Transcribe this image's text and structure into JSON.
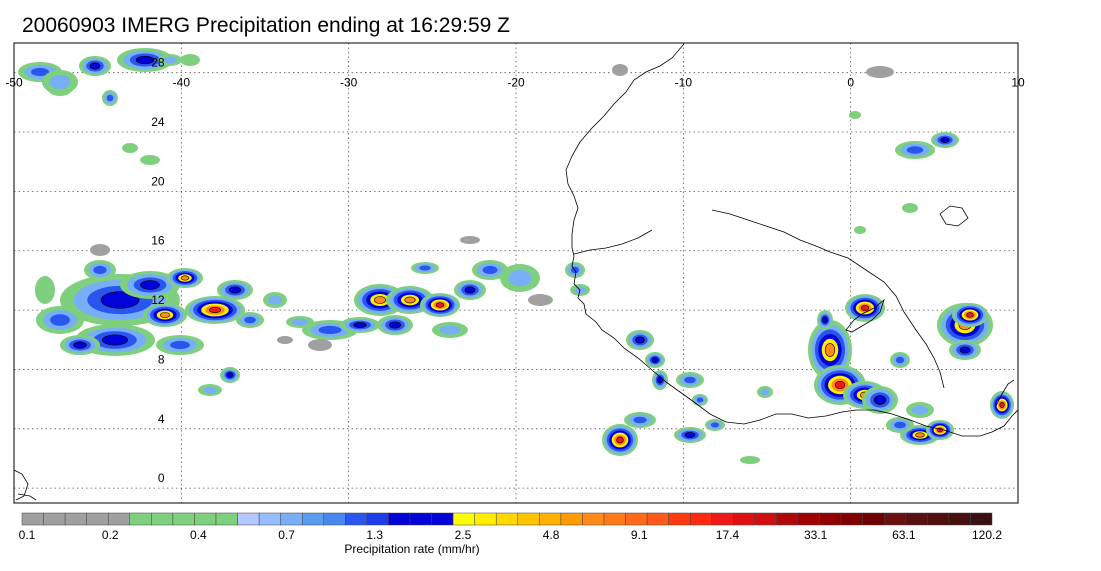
{
  "title": "20060903 IMERG Precipitation ending at 16:29:59 Z",
  "map": {
    "lon_range": [
      -50,
      10
    ],
    "lat_range": [
      -1,
      30
    ],
    "lon_labels": [
      "-50",
      "-40",
      "-30",
      "-20",
      "-10",
      "0",
      "10"
    ],
    "lat_labels": [
      "28",
      "24",
      "20",
      "16",
      "12",
      "8",
      "4",
      "0"
    ],
    "coast_color": "#000000"
  },
  "colorbar": {
    "title": "Precipitation rate (mm/hr)",
    "tick_labels": [
      "0.1",
      "0.2",
      "0.4",
      "0.7",
      "1.3",
      "2.5",
      "4.8",
      "9.1",
      "17.4",
      "33.1",
      "63.1",
      "120.2"
    ],
    "colors": [
      "#a0a0a0",
      "#a0a0a0",
      "#a0a0a0",
      "#a0a0a0",
      "#a0a0a0",
      "#7ed07e",
      "#7ed07e",
      "#7ed07e",
      "#7ed07e",
      "#7ed07e",
      "#b4c8ff",
      "#96beff",
      "#78aef6",
      "#5a9cf0",
      "#4888ee",
      "#2a56f0",
      "#1e3ce8",
      "#0000d8",
      "#0000d8",
      "#0000d8",
      "#ffff00",
      "#ffee00",
      "#ffd800",
      "#ffc400",
      "#ffb000",
      "#ff9a00",
      "#ff8a1a",
      "#ff7a1a",
      "#ff6a1a",
      "#ff5a1a",
      "#ff3a10",
      "#ff2a10",
      "#f01818",
      "#e01010",
      "#d01010",
      "#b00808",
      "#a00000",
      "#900000",
      "#800000",
      "#700000",
      "#6a1010",
      "#5a1010",
      "#501010",
      "#461010",
      "#3c1010"
    ]
  }
}
